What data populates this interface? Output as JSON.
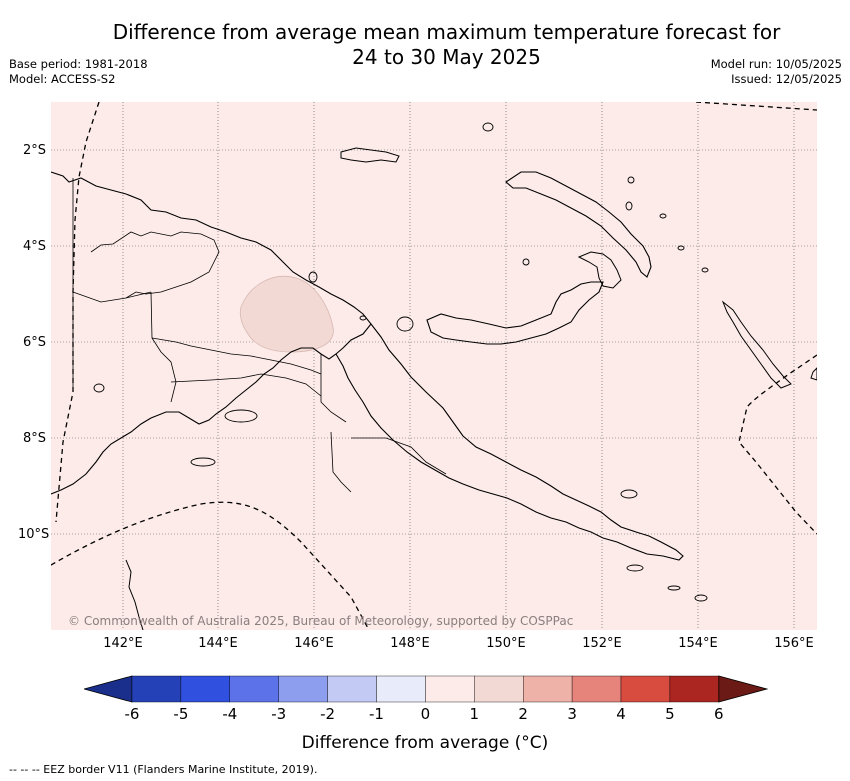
{
  "title_line1": "Difference from average mean maximum temperature forecast for",
  "title_line2": "24 to 30 May 2025",
  "base_period": "Base period: 1981-2018",
  "model": "Model: ACCESS-S2",
  "model_run": "Model run: 10/05/2025",
  "issued": "Issued: 12/05/2025",
  "copyright": "© Commonwealth of Australia 2025, Bureau of Meteorology, supported by COSPPac",
  "lat_labels": [
    "2°S",
    "4°S",
    "6°S",
    "8°S",
    "10°S"
  ],
  "lon_labels": [
    "142°E",
    "144°E",
    "146°E",
    "148°E",
    "150°E",
    "152°E",
    "154°E",
    "156°E"
  ],
  "colorbar": {
    "ticks": [
      "-6",
      "-5",
      "-4",
      "-3",
      "-2",
      "-1",
      "0",
      "1",
      "2",
      "3",
      "4",
      "5",
      "6"
    ],
    "colors": [
      "#1a2f8c",
      "#2541b8",
      "#3050e0",
      "#5b72e8",
      "#8e9eee",
      "#c3caf4",
      "#e8ebfa",
      "#fcebe9",
      "#f2d9d4",
      "#efb2a9",
      "#e6837a",
      "#d84c40",
      "#ab2620",
      "#6b1a15"
    ],
    "label": "Difference from average (°C)"
  },
  "legend_text": "-- -- -- EEZ border V11 (Flanders Marine Institute, 2019).",
  "map": {
    "background_color": "#fcebe9",
    "anomaly_patch_color": "#f2d9d4"
  }
}
